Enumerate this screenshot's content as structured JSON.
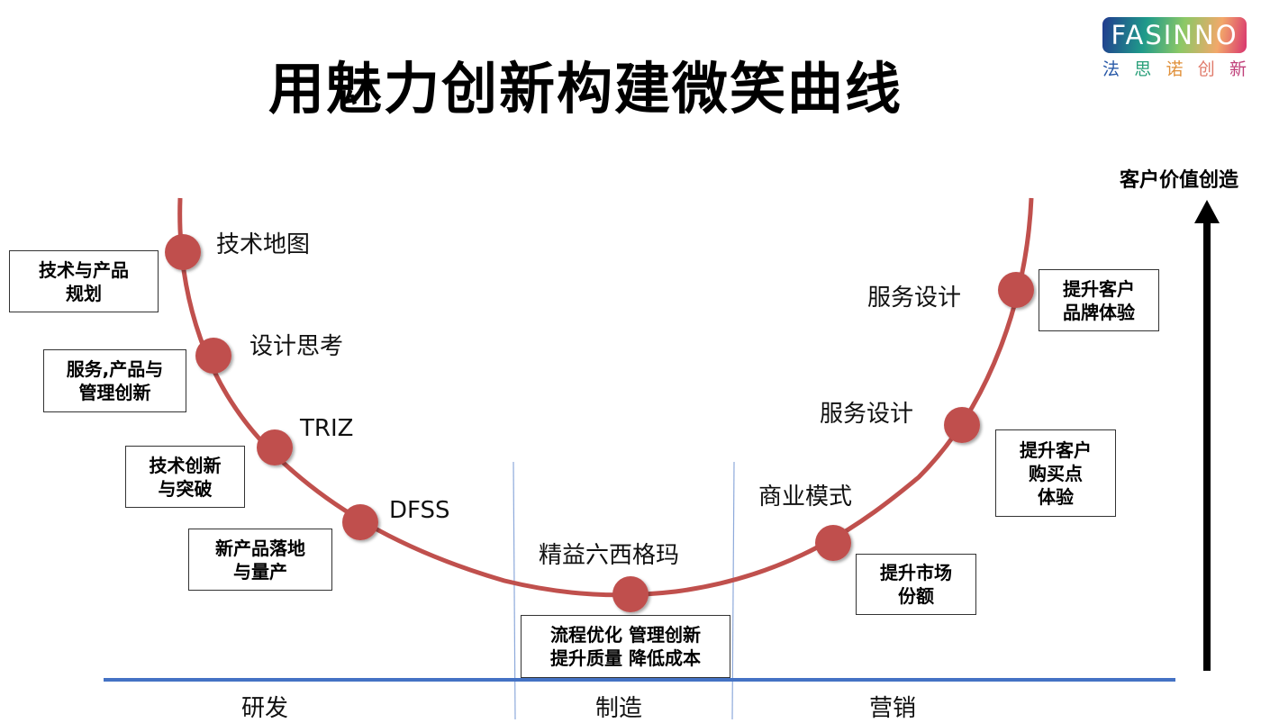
{
  "title": "用魅力创新构建微笑曲线",
  "logo": {
    "text": "FASINNO",
    "subtitle": [
      "法",
      "思",
      "诺",
      "创",
      "新"
    ],
    "subtitle_colors": [
      "#2a5aa8",
      "#2aa07a",
      "#e0903a",
      "#e07a6a",
      "#c0407a"
    ]
  },
  "axis_label": "客户价值创造",
  "curve_color": "#c0504d",
  "baseline_color": "#4472c4",
  "points": [
    {
      "label": "技术地图",
      "box": "技术与产品\n规划"
    },
    {
      "label": "设计思考",
      "box": "服务,产品与\n管理创新"
    },
    {
      "label": "TRIZ",
      "box": "技术创新\n与突破"
    },
    {
      "label": "DFSS",
      "box": "新产品落地\n与量产"
    },
    {
      "label": "精益六西格玛",
      "box": "流程优化 管理创新\n提升质量 降低成本"
    },
    {
      "label": "商业模式",
      "box": "提升市场\n份额"
    },
    {
      "label": "服务设计",
      "box": "提升客户\n购买点\n体验"
    },
    {
      "label": "服务设计",
      "box": "提升客户\n品牌体验"
    }
  ],
  "sections": [
    "研发",
    "制造",
    "营销"
  ]
}
